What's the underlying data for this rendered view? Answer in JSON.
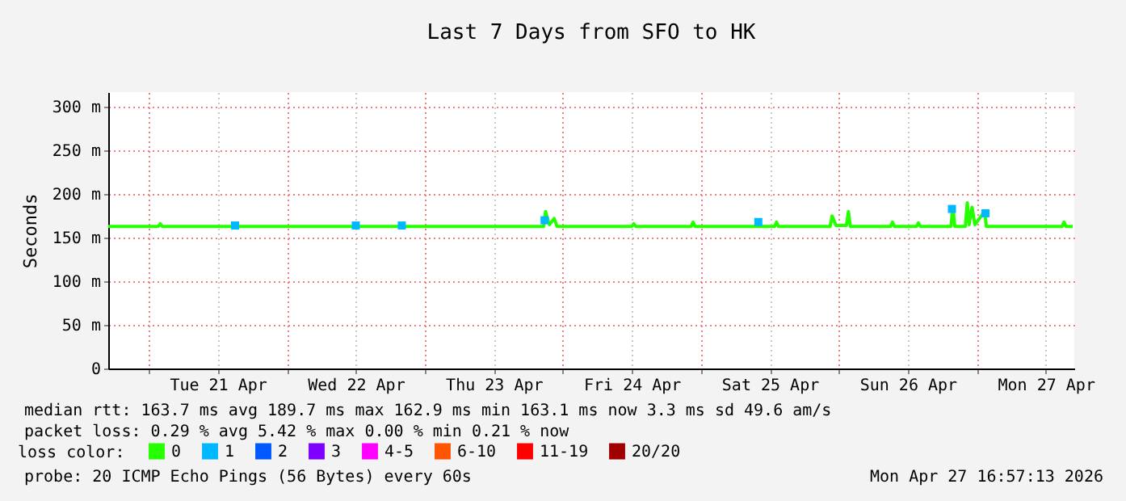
{
  "chart_data": {
    "type": "line",
    "title": "Last 7 Days from SFO to HK",
    "ylabel": "Seconds",
    "xlim": [
      "2026-04-20T16:57",
      "2026-04-27T16:57"
    ],
    "xticks": [
      {
        "value": "2026-04-21T00:00",
        "label": null
      },
      {
        "value": "2026-04-21T12:00",
        "label": "Tue 21 Apr"
      },
      {
        "value": "2026-04-22T00:00",
        "label": null
      },
      {
        "value": "2026-04-22T12:00",
        "label": "Wed 22 Apr"
      },
      {
        "value": "2026-04-23T00:00",
        "label": null
      },
      {
        "value": "2026-04-23T12:00",
        "label": "Thu 23 Apr"
      },
      {
        "value": "2026-04-24T00:00",
        "label": null
      },
      {
        "value": "2026-04-24T12:00",
        "label": "Fri 24 Apr"
      },
      {
        "value": "2026-04-25T00:00",
        "label": null
      },
      {
        "value": "2026-04-25T12:00",
        "label": "Sat 25 Apr"
      },
      {
        "value": "2026-04-26T00:00",
        "label": null
      },
      {
        "value": "2026-04-26T12:00",
        "label": "Sun 26 Apr"
      },
      {
        "value": "2026-04-27T00:00",
        "label": null
      },
      {
        "value": "2026-04-27T12:00",
        "label": "Mon 27 Apr"
      }
    ],
    "ylim": [
      0,
      317
    ],
    "yticks": [
      0,
      {
        "value": 50,
        "label": "50 m"
      },
      {
        "value": 100,
        "label": "100 m"
      },
      {
        "value": 150,
        "label": "150 m"
      },
      {
        "value": 200,
        "label": "200 m"
      },
      {
        "value": 250,
        "label": "250 m"
      },
      {
        "value": 300,
        "label": "300 m"
      }
    ],
    "grid": true,
    "legend": "bottom",
    "legend_title": "loss color:",
    "line_style": "solid",
    "series": [
      {
        "name": "0",
        "color": "#26ff00",
        "x": [
          "2026-04-20T16:57",
          "2026-04-21T01:40",
          "2026-04-21T02:00",
          "2026-04-21T02:20",
          "2026-04-23T20:40",
          "2026-04-23T21:00",
          "2026-04-23T21:40",
          "2026-04-23T22:30",
          "2026-04-23T23:00",
          "2026-04-24T12:00",
          "2026-04-24T12:20",
          "2026-04-24T12:40",
          "2026-04-24T22:20",
          "2026-04-24T22:40",
          "2026-04-24T23:00",
          "2026-04-25T12:50",
          "2026-04-25T13:10",
          "2026-04-25T13:30",
          "2026-04-25T22:30",
          "2026-04-25T22:50",
          "2026-04-25T23:30",
          "2026-04-26T01:20",
          "2026-04-26T01:40",
          "2026-04-26T02:00",
          "2026-04-26T09:00",
          "2026-04-26T09:20",
          "2026-04-26T09:40",
          "2026-04-26T13:30",
          "2026-04-26T13:50",
          "2026-04-26T14:10",
          "2026-04-26T19:30",
          "2026-04-26T19:50",
          "2026-04-26T20:10",
          "2026-04-26T22:00",
          "2026-04-26T22:20",
          "2026-04-26T22:40",
          "2026-04-26T23:10",
          "2026-04-26T23:40",
          "2026-04-27T01:20",
          "2026-04-27T01:40",
          "2026-04-27T14:50",
          "2026-04-27T15:10",
          "2026-04-27T15:30",
          "2026-04-27T16:40"
        ],
        "values": [
          163,
          163,
          166,
          163,
          163,
          180,
          165,
          172,
          163,
          163,
          166,
          163,
          163,
          168,
          163,
          163,
          168,
          163,
          163,
          175,
          164,
          164,
          180,
          163,
          163,
          168,
          163,
          163,
          167,
          163,
          163,
          185,
          163,
          163,
          190,
          165,
          185,
          165,
          180,
          163,
          163,
          168,
          163,
          163
        ]
      },
      {
        "name": "1",
        "color": "#00b8ff",
        "type": "scatter",
        "x": [
          "2026-04-21T15:00",
          "2026-04-22T12:00",
          "2026-04-22T20:00",
          "2026-04-23T20:50",
          "2026-04-25T10:00",
          "2026-04-26T19:40",
          "2026-04-27T01:30"
        ],
        "values": [
          164,
          164,
          164,
          170,
          168,
          183,
          178
        ]
      },
      {
        "name": "2",
        "color": "#0059ff",
        "type": "scatter"
      },
      {
        "name": "3",
        "color": "#7e00ff",
        "type": "scatter"
      },
      {
        "name": "4-5",
        "color": "#ff00ff",
        "type": "scatter"
      },
      {
        "name": "6-10",
        "color": "#ff5500",
        "type": "scatter"
      },
      {
        "name": "11-19",
        "color": "#ff0000",
        "type": "scatter"
      },
      {
        "name": "20/20",
        "color": "#a10000",
        "type": "scatter"
      }
    ],
    "annotations": [
      "median rtt:  163.7 ms avg  189.7 ms max  162.9 ms min  163.1 ms now  3.3 ms sd  49.6   am/s",
      "packet loss: 0.29 % avg  5.42 % max  0.00 % min  0.21 % now",
      "probe:       20 ICMP Echo Pings (56 Bytes) every 60s",
      "Mon Apr 27 16:57:13 2026"
    ]
  }
}
